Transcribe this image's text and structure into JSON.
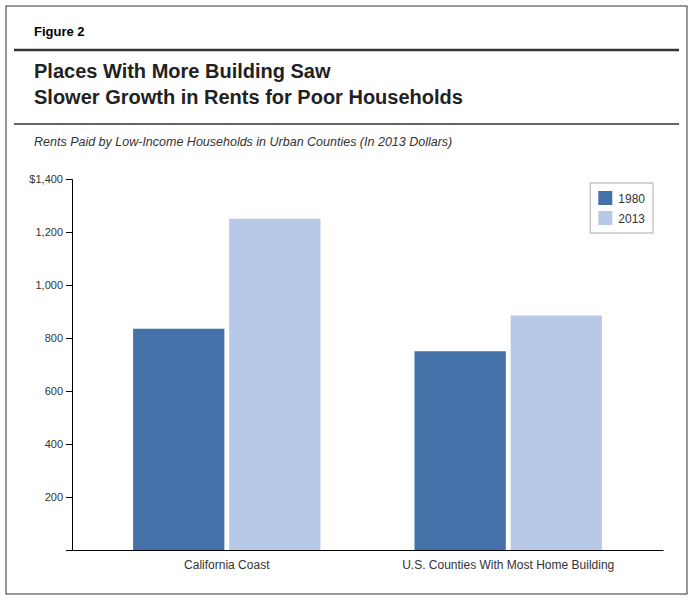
{
  "chart_data": {
    "type": "bar",
    "annotations": [
      "Figure 2"
    ],
    "title": [
      "Places With More Building Saw",
      "Slower Growth in Rents for Poor Households"
    ],
    "subtitle": "Rents Paid by Low-Income Households in Urban Counties (In 2013 Dollars)",
    "categories": [
      "California Coast",
      "U.S. Counties With Most Home Building"
    ],
    "series": [
      {
        "name": "1980",
        "color": "#4472a8",
        "values": [
          835,
          750
        ]
      },
      {
        "name": "2013",
        "color": "#b8c9e8",
        "values": [
          1250,
          885
        ]
      }
    ],
    "ylim": [
      0,
      1400
    ],
    "yticks": [
      200,
      400,
      600,
      800,
      {
        "value": 1000,
        "label": "1,000"
      },
      {
        "value": 1200,
        "label": "1,200"
      },
      {
        "value": 1400,
        "label": "$1,400"
      }
    ],
    "grid": false,
    "legend": "top-right"
  }
}
